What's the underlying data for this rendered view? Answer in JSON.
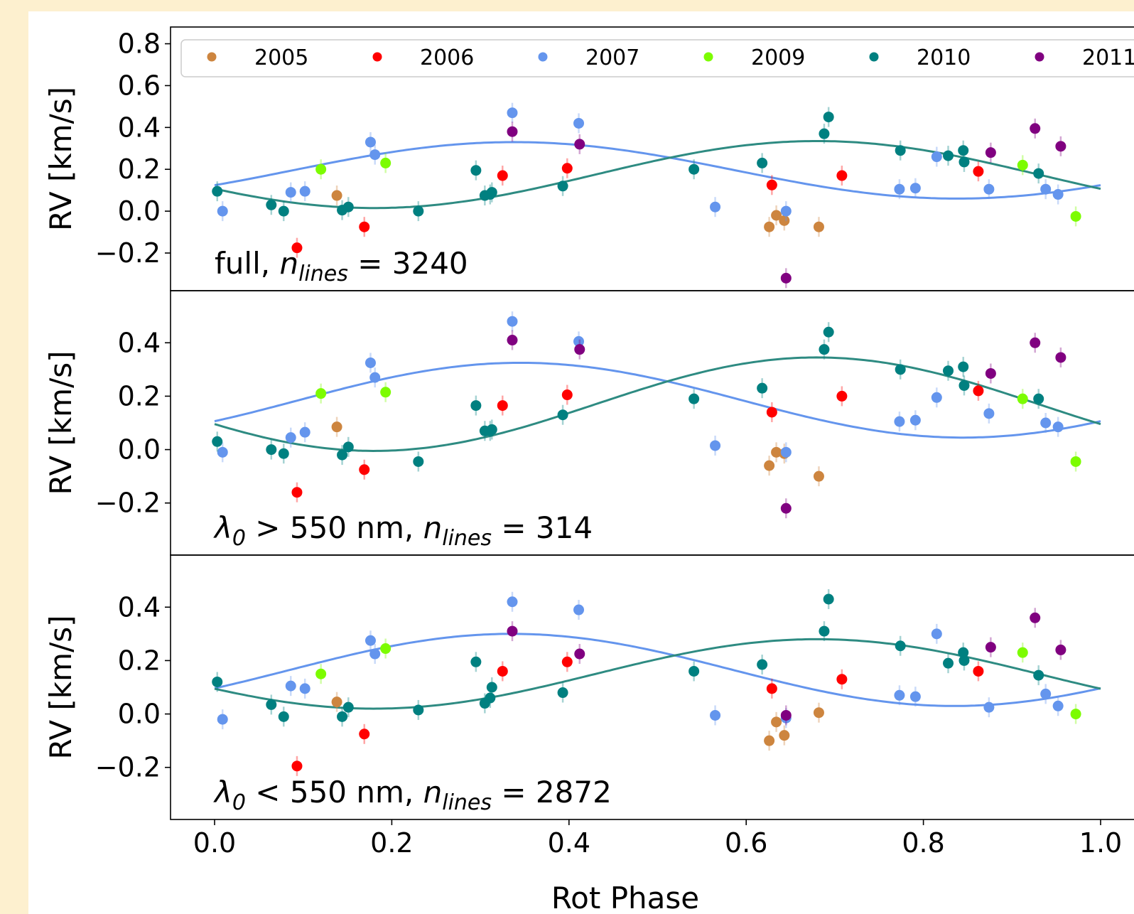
{
  "chart_data": {
    "type": "scatter",
    "xlabel": "Rot Phase",
    "xlim": [
      0.0,
      1.0
    ],
    "x_ticks": [
      0.0,
      0.2,
      0.4,
      0.6,
      0.8,
      1.0
    ],
    "x_tick_labels": [
      "0.0",
      "0.2",
      "0.4",
      "0.6",
      "0.8",
      "1.0"
    ],
    "legend": {
      "placement": "top",
      "entries": [
        {
          "name": "2005",
          "color": "#cd853f"
        },
        {
          "name": "2006",
          "color": "#ff0000"
        },
        {
          "name": "2007",
          "color": "#6495ed"
        },
        {
          "name": "2009",
          "color": "#7cfc00"
        },
        {
          "name": "2010",
          "color": "#008080"
        },
        {
          "name": "2011",
          "color": "#800080"
        }
      ]
    },
    "panels": [
      {
        "ylabel": "RV [km/s]",
        "ylim": [
          -0.38,
          0.88
        ],
        "y_ticks": [
          -0.2,
          0.0,
          0.2,
          0.4,
          0.6,
          0.8
        ],
        "y_tick_labels": [
          "−0.2",
          "0.0",
          "0.2",
          "0.4",
          "0.6",
          "0.8"
        ],
        "annotation": {
          "prefix": "full, ",
          "var": "n",
          "sub": "lines",
          "suffix": " = 3240"
        },
        "curves": [
          {
            "name": "2007",
            "color": "#6495ed",
            "offset": 0.195,
            "amp": 0.135,
            "phase0": 0.338
          },
          {
            "name": "2010",
            "color": "#2e8b82",
            "offset": 0.175,
            "amp": 0.16,
            "phase0": 0.68
          }
        ],
        "series": [
          {
            "name": "2005",
            "color": "#cd853f",
            "x": [
              0.138,
              0.626,
              0.634,
              0.643,
              0.682
            ],
            "y": [
              0.075,
              -0.075,
              -0.02,
              -0.045,
              -0.075
            ]
          },
          {
            "name": "2006",
            "color": "#ff0000",
            "x": [
              0.093,
              0.169,
              0.325,
              0.398,
              0.629,
              0.708,
              0.862
            ],
            "y": [
              -0.175,
              -0.075,
              0.17,
              0.205,
              0.125,
              0.17,
              0.19
            ]
          },
          {
            "name": "2007",
            "color": "#6495ed",
            "x": [
              0.009,
              0.086,
              0.102,
              0.176,
              0.181,
              0.336,
              0.411,
              0.565,
              0.645,
              0.773,
              0.791,
              0.815,
              0.874,
              0.938,
              0.952
            ],
            "y": [
              0.0,
              0.09,
              0.095,
              0.33,
              0.27,
              0.47,
              0.42,
              0.02,
              0.0,
              0.105,
              0.11,
              0.26,
              0.105,
              0.105,
              0.08
            ]
          },
          {
            "name": "2009",
            "color": "#7cfc00",
            "x": [
              0.12,
              0.193,
              0.912,
              0.972
            ],
            "y": [
              0.2,
              0.23,
              0.22,
              -0.025
            ]
          },
          {
            "name": "2010",
            "color": "#008080",
            "x": [
              0.003,
              0.064,
              0.078,
              0.144,
              0.151,
              0.23,
              0.295,
              0.305,
              0.311,
              0.313,
              0.393,
              0.541,
              0.618,
              0.688,
              0.693,
              0.774,
              0.828,
              0.845,
              0.846,
              0.93
            ],
            "y": [
              0.095,
              0.03,
              0.0,
              0.005,
              0.02,
              0.0,
              0.195,
              0.075,
              0.08,
              0.09,
              0.12,
              0.2,
              0.23,
              0.37,
              0.45,
              0.29,
              0.265,
              0.29,
              0.235,
              0.18
            ]
          },
          {
            "name": "2011",
            "color": "#800080",
            "x": [
              0.336,
              0.412,
              0.645,
              0.876,
              0.926,
              0.955
            ],
            "y": [
              0.38,
              0.32,
              -0.32,
              0.28,
              0.395,
              0.31
            ]
          }
        ]
      },
      {
        "ylabel": "RV [km/s]",
        "ylim": [
          -0.395,
          0.595
        ],
        "y_ticks": [
          -0.2,
          0.0,
          0.2,
          0.4
        ],
        "y_tick_labels": [
          "−0.2",
          "0.0",
          "0.2",
          "0.4"
        ],
        "annotation": {
          "prefix": "λ",
          "prefix_sub": "0",
          "mid": " > 550 nm, ",
          "var": "n",
          "sub": "lines",
          "suffix": " = 314"
        },
        "curves": [
          {
            "name": "2007",
            "color": "#6495ed",
            "offset": 0.185,
            "amp": 0.14,
            "phase0": 0.345
          },
          {
            "name": "2010",
            "color": "#2e8b82",
            "offset": 0.17,
            "amp": 0.175,
            "phase0": 0.68
          }
        ],
        "series": [
          {
            "name": "2005",
            "color": "#cd853f",
            "x": [
              0.138,
              0.626,
              0.634,
              0.643,
              0.682
            ],
            "y": [
              0.085,
              -0.06,
              -0.01,
              -0.015,
              -0.1
            ]
          },
          {
            "name": "2006",
            "color": "#ff0000",
            "x": [
              0.093,
              0.169,
              0.325,
              0.398,
              0.629,
              0.708,
              0.862
            ],
            "y": [
              -0.16,
              -0.075,
              0.165,
              0.205,
              0.14,
              0.2,
              0.22
            ]
          },
          {
            "name": "2007",
            "color": "#6495ed",
            "x": [
              0.009,
              0.086,
              0.102,
              0.176,
              0.181,
              0.336,
              0.411,
              0.565,
              0.645,
              0.773,
              0.791,
              0.815,
              0.874,
              0.938,
              0.952
            ],
            "y": [
              -0.01,
              0.045,
              0.065,
              0.325,
              0.27,
              0.48,
              0.405,
              0.015,
              -0.01,
              0.105,
              0.11,
              0.195,
              0.135,
              0.1,
              0.085
            ]
          },
          {
            "name": "2009",
            "color": "#7cfc00",
            "x": [
              0.12,
              0.193,
              0.912,
              0.972
            ],
            "y": [
              0.21,
              0.215,
              0.19,
              -0.045
            ]
          },
          {
            "name": "2010",
            "color": "#008080",
            "x": [
              0.003,
              0.064,
              0.078,
              0.144,
              0.151,
              0.23,
              0.295,
              0.305,
              0.311,
              0.313,
              0.393,
              0.541,
              0.618,
              0.688,
              0.693,
              0.774,
              0.828,
              0.845,
              0.846,
              0.93
            ],
            "y": [
              0.03,
              0.0,
              -0.015,
              -0.02,
              0.01,
              -0.045,
              0.165,
              0.07,
              0.07,
              0.075,
              0.13,
              0.19,
              0.23,
              0.375,
              0.44,
              0.3,
              0.295,
              0.31,
              0.24,
              0.19
            ]
          },
          {
            "name": "2011",
            "color": "#800080",
            "x": [
              0.336,
              0.412,
              0.645,
              0.876,
              0.926,
              0.955
            ],
            "y": [
              0.41,
              0.375,
              -0.22,
              0.285,
              0.4,
              0.345
            ]
          }
        ]
      },
      {
        "ylabel": "RV [km/s]",
        "ylim": [
          -0.395,
          0.595
        ],
        "y_ticks": [
          -0.2,
          0.0,
          0.2,
          0.4
        ],
        "y_tick_labels": [
          "−0.2",
          "0.0",
          "0.2",
          "0.4"
        ],
        "annotation": {
          "prefix": "λ",
          "prefix_sub": "0",
          "mid": " < 550 nm, ",
          "var": "n",
          "sub": "lines",
          "suffix": " = 2872"
        },
        "curves": [
          {
            "name": "2007",
            "color": "#6495ed",
            "offset": 0.165,
            "amp": 0.135,
            "phase0": 0.335
          },
          {
            "name": "2010",
            "color": "#2e8b82",
            "offset": 0.15,
            "amp": 0.13,
            "phase0": 0.68
          }
        ],
        "series": [
          {
            "name": "2005",
            "color": "#cd853f",
            "x": [
              0.138,
              0.626,
              0.634,
              0.643,
              0.682
            ],
            "y": [
              0.045,
              -0.1,
              -0.03,
              -0.08,
              0.005
            ]
          },
          {
            "name": "2006",
            "color": "#ff0000",
            "x": [
              0.093,
              0.169,
              0.325,
              0.398,
              0.629,
              0.708,
              0.862
            ],
            "y": [
              -0.195,
              -0.075,
              0.16,
              0.195,
              0.095,
              0.13,
              0.16
            ]
          },
          {
            "name": "2007",
            "color": "#6495ed",
            "x": [
              0.009,
              0.086,
              0.102,
              0.176,
              0.181,
              0.336,
              0.411,
              0.565,
              0.645,
              0.773,
              0.791,
              0.815,
              0.874,
              0.938,
              0.952
            ],
            "y": [
              -0.02,
              0.105,
              0.095,
              0.275,
              0.225,
              0.42,
              0.39,
              -0.005,
              -0.015,
              0.07,
              0.065,
              0.3,
              0.025,
              0.075,
              0.03
            ]
          },
          {
            "name": "2009",
            "color": "#7cfc00",
            "x": [
              0.12,
              0.193,
              0.912,
              0.972
            ],
            "y": [
              0.15,
              0.245,
              0.23,
              0.0
            ]
          },
          {
            "name": "2010",
            "color": "#008080",
            "x": [
              0.003,
              0.064,
              0.078,
              0.144,
              0.151,
              0.23,
              0.295,
              0.305,
              0.311,
              0.313,
              0.393,
              0.541,
              0.618,
              0.688,
              0.693,
              0.774,
              0.828,
              0.845,
              0.846,
              0.93
            ],
            "y": [
              0.12,
              0.035,
              -0.01,
              -0.01,
              0.025,
              0.015,
              0.195,
              0.04,
              0.06,
              0.1,
              0.08,
              0.16,
              0.185,
              0.31,
              0.43,
              0.255,
              0.19,
              0.23,
              0.2,
              0.145
            ]
          },
          {
            "name": "2011",
            "color": "#800080",
            "x": [
              0.336,
              0.412,
              0.645,
              0.876,
              0.926,
              0.955
            ],
            "y": [
              0.31,
              0.225,
              -0.005,
              0.25,
              0.36,
              0.24
            ]
          }
        ]
      }
    ]
  }
}
